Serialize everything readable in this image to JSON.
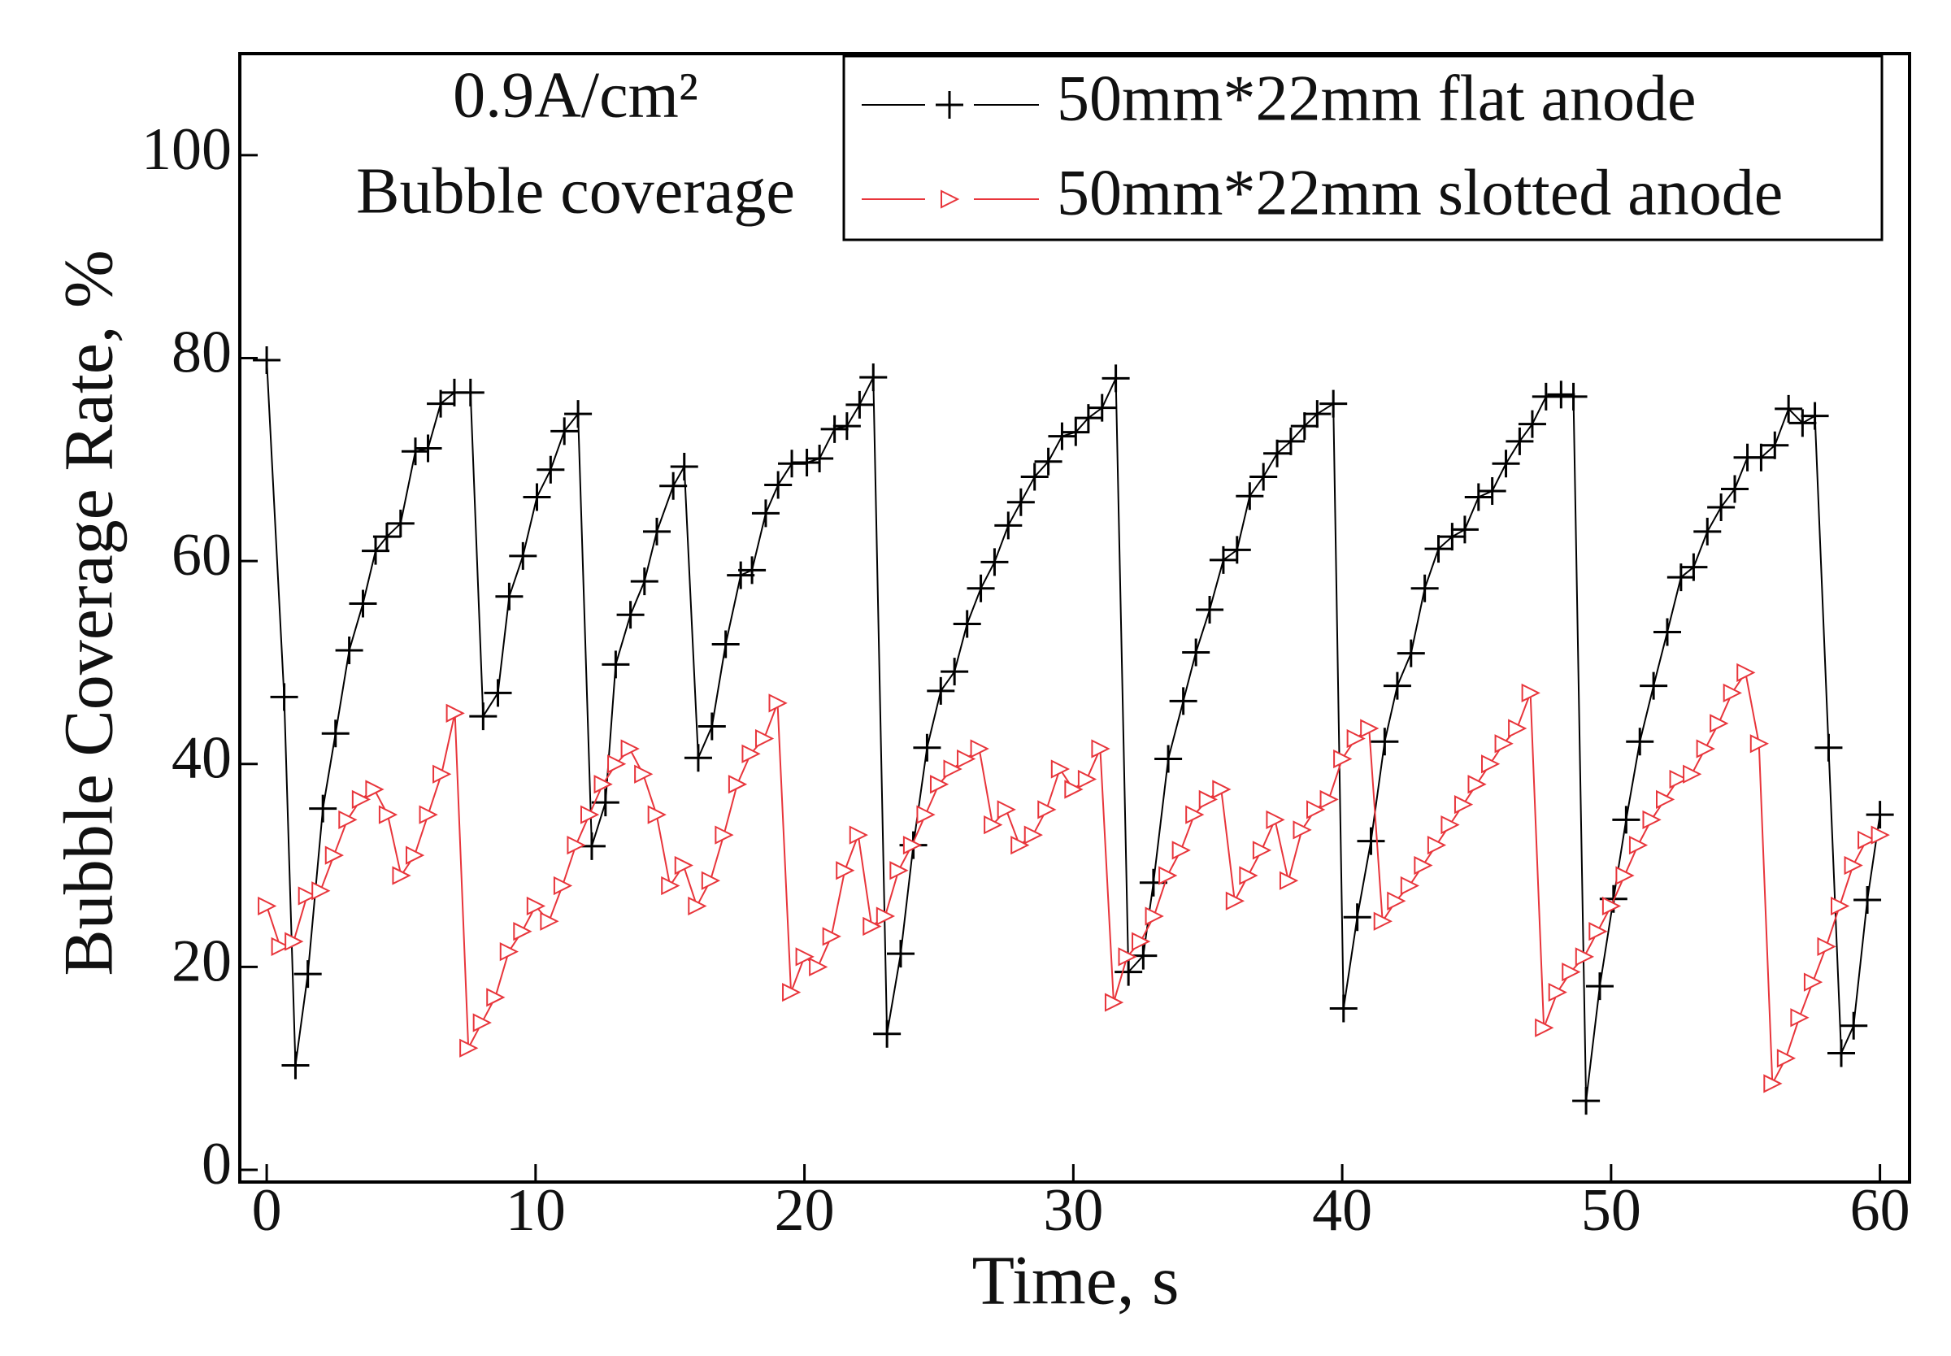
{
  "chart_data": {
    "type": "line",
    "annotations": [
      "0.9A/cm²",
      "Bubble coverage"
    ],
    "xlabel": "Time, s",
    "ylabel": "Bubble Coverage Rate, %",
    "xlim": [
      -1,
      61.1
    ],
    "ylim": [
      -1.2,
      110
    ],
    "xticks": [
      0,
      10,
      20,
      30,
      40,
      50,
      60
    ],
    "yticks": [
      0,
      20,
      40,
      60,
      80,
      100
    ],
    "legend": "upper right",
    "series": [
      {
        "name": "50mm*22mm flat anode",
        "color": "#000000",
        "marker": "plus",
        "x": [
          0,
          0.65,
          1.07,
          1.53,
          2.09,
          2.56,
          3.07,
          3.58,
          4.05,
          4.47,
          4.98,
          5.53,
          6.0,
          6.47,
          6.98,
          7.58,
          8.05,
          8.6,
          9.02,
          9.53,
          10.05,
          10.56,
          11.07,
          11.58,
          12.09,
          12.6,
          12.98,
          13.53,
          14.05,
          14.51,
          15.12,
          15.53,
          16.05,
          16.56,
          17.07,
          17.63,
          18.05,
          18.56,
          19.02,
          19.53,
          20.09,
          20.56,
          21.12,
          21.58,
          22.05,
          22.56,
          23.07,
          23.58,
          24.05,
          24.56,
          25.07,
          25.58,
          26.05,
          26.56,
          27.07,
          27.58,
          28.05,
          28.56,
          29.07,
          29.58,
          30.09,
          30.56,
          31.07,
          31.58,
          32.05,
          32.6,
          32.98,
          33.53,
          34.09,
          34.56,
          35.07,
          35.58,
          36.09,
          36.56,
          37.07,
          37.58,
          38.09,
          38.6,
          39.07,
          39.67,
          40.05,
          40.56,
          41.07,
          41.58,
          42.05,
          42.56,
          43.07,
          43.58,
          44.09,
          44.56,
          45.07,
          45.58,
          46.09,
          46.6,
          47.07,
          47.58,
          48.14,
          48.6,
          49.07,
          49.58,
          50.09,
          50.56,
          51.07,
          51.58,
          52.09,
          52.6,
          53.07,
          53.58,
          54.09,
          54.6,
          55.07,
          55.58,
          56.09,
          56.6,
          57.12,
          57.58,
          58.09,
          58.56,
          59.02,
          59.53,
          60.0
        ],
        "values": [
          79.8,
          46.6,
          10.3,
          19.3,
          35.6,
          43.0,
          51.2,
          55.8,
          61.0,
          62.4,
          63.7,
          70.8,
          71.1,
          75.5,
          76.6,
          76.6,
          44.7,
          47.0,
          56.5,
          60.5,
          66.3,
          69.0,
          72.8,
          74.5,
          31.9,
          36.2,
          49.8,
          54.7,
          58.0,
          62.9,
          67.4,
          69.3,
          40.6,
          43.7,
          51.8,
          58.6,
          59.1,
          64.7,
          67.5,
          69.6,
          69.7,
          70.1,
          73.0,
          73.3,
          75.4,
          78.1,
          13.4,
          21.3,
          32.0,
          41.6,
          47.2,
          49.1,
          53.8,
          57.3,
          59.9,
          63.5,
          65.8,
          68.3,
          69.8,
          72.3,
          72.7,
          74.1,
          75.1,
          78.0,
          19.5,
          21.1,
          28.3,
          40.5,
          46.2,
          51.0,
          55.2,
          60.1,
          61.1,
          66.4,
          68.3,
          70.6,
          71.8,
          73.3,
          74.5,
          75.5,
          15.9,
          24.9,
          32.4,
          42.2,
          47.7,
          50.9,
          57.3,
          61.2,
          62.4,
          63.1,
          66.3,
          66.9,
          69.6,
          71.8,
          73.5,
          76.2,
          76.4,
          76.2,
          6.8,
          18.1,
          26.7,
          34.5,
          42.2,
          47.7,
          53.0,
          58.4,
          59.4,
          62.9,
          65.3,
          67.1,
          70.2,
          70.2,
          71.4,
          75.0,
          73.6,
          74.3,
          41.6,
          11.5,
          14.2,
          26.6,
          35.0
        ]
      },
      {
        "name": "50mm*22mm slotted anode",
        "color": "#e8353b",
        "marker": "triangle-right",
        "x": [
          0,
          0.5,
          1,
          1.5,
          2,
          2.5,
          3,
          3.5,
          4,
          4.5,
          5,
          5.5,
          6,
          6.5,
          7,
          7.5,
          8,
          8.5,
          9,
          9.5,
          10,
          10.5,
          11,
          11.5,
          12,
          12.5,
          13,
          13.5,
          14,
          14.5,
          15,
          15.5,
          16,
          16.5,
          17,
          17.5,
          18,
          18.5,
          19,
          19.5,
          20,
          20.5,
          21,
          21.5,
          22,
          22.5,
          23,
          23.5,
          24,
          24.5,
          25,
          25.5,
          26,
          26.5,
          27,
          27.5,
          28,
          28.5,
          29,
          29.5,
          30,
          30.5,
          31,
          31.5,
          32,
          32.5,
          33,
          33.5,
          34,
          34.5,
          35,
          35.5,
          36,
          36.5,
          37,
          37.5,
          38,
          38.5,
          39,
          39.5,
          40,
          40.5,
          41,
          41.5,
          42,
          42.5,
          43,
          43.5,
          44,
          44.5,
          45,
          45.5,
          46,
          46.5,
          47,
          47.5,
          48,
          48.5,
          49,
          49.5,
          50,
          50.5,
          51,
          51.5,
          52,
          52.5,
          53,
          53.5,
          54,
          54.5,
          55,
          55.5,
          56,
          56.5,
          57,
          57.5,
          58,
          58.5,
          59,
          59.5,
          60
        ],
        "values": [
          26,
          22,
          22.5,
          27,
          27.5,
          31,
          34.5,
          36.5,
          37.5,
          35,
          29,
          31,
          35,
          39,
          45,
          12,
          14.5,
          17,
          21.5,
          23.5,
          26,
          24.5,
          28,
          32,
          35,
          38,
          40,
          41.5,
          39,
          35,
          28,
          30,
          26,
          28.5,
          33,
          38,
          41,
          42.5,
          46,
          17.5,
          21,
          20,
          23,
          29.5,
          33,
          24,
          25,
          29.5,
          32,
          35,
          38,
          39.5,
          40.5,
          41.5,
          34,
          35.5,
          32,
          33,
          35.5,
          39.5,
          37.5,
          38.5,
          41.5,
          16.5,
          21,
          22.5,
          25,
          29,
          31.5,
          35,
          36.5,
          37.5,
          26.5,
          29,
          31.5,
          34.5,
          28.5,
          33.5,
          35.5,
          36.5,
          40.5,
          42.5,
          43.5,
          24.5,
          26.5,
          28,
          30,
          32,
          34,
          36,
          38,
          40,
          42,
          43.5,
          47,
          14,
          17.5,
          19.5,
          21,
          23.5,
          26,
          29,
          32,
          34.5,
          36.5,
          38.5,
          39,
          41.5,
          44,
          47,
          49,
          42,
          8.5,
          11,
          15,
          18.5,
          22,
          26,
          30,
          32.5,
          33
        ]
      }
    ]
  }
}
